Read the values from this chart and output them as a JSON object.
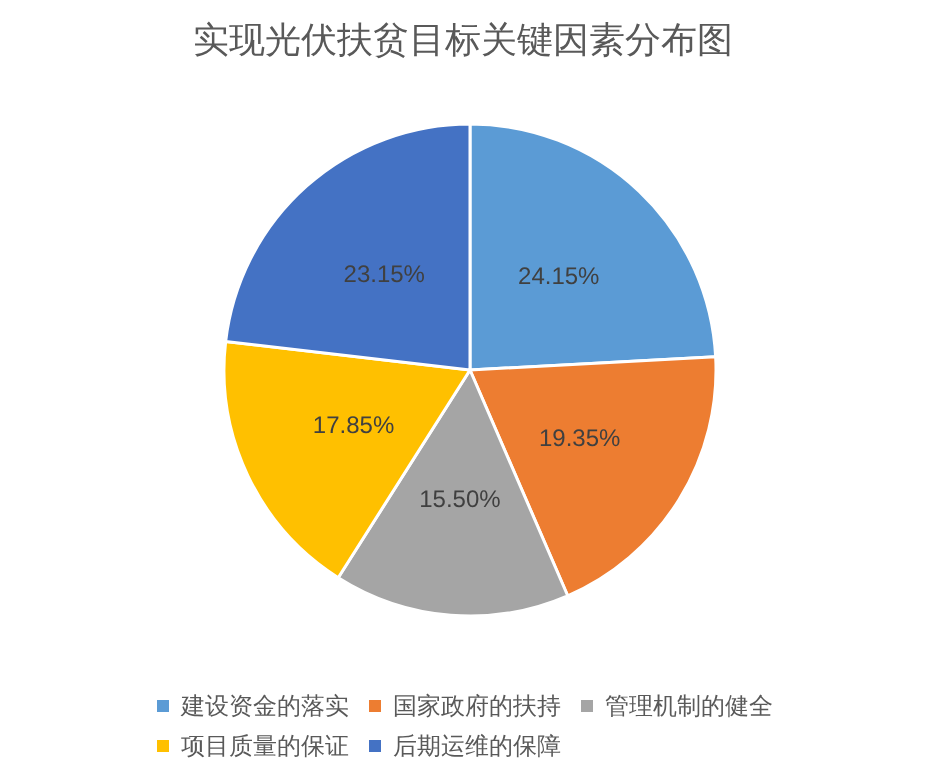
{
  "chart_data": {
    "type": "pie",
    "title": "实现光伏扶贫目标关键因素分布图",
    "categories": [
      "建设资金的落实",
      "国家政府的扶持",
      "管理机制的健全",
      "项目质量的保证",
      "后期运维的保障"
    ],
    "values": [
      24.15,
      19.35,
      15.5,
      17.85,
      23.15
    ],
    "value_labels": [
      "24.15%",
      "19.35%",
      "15.50%",
      "17.85%",
      "23.15%"
    ],
    "colors": [
      "#5b9bd5",
      "#ed7d31",
      "#a5a5a5",
      "#ffc000",
      "#4472c4"
    ],
    "legend": "bottom"
  }
}
